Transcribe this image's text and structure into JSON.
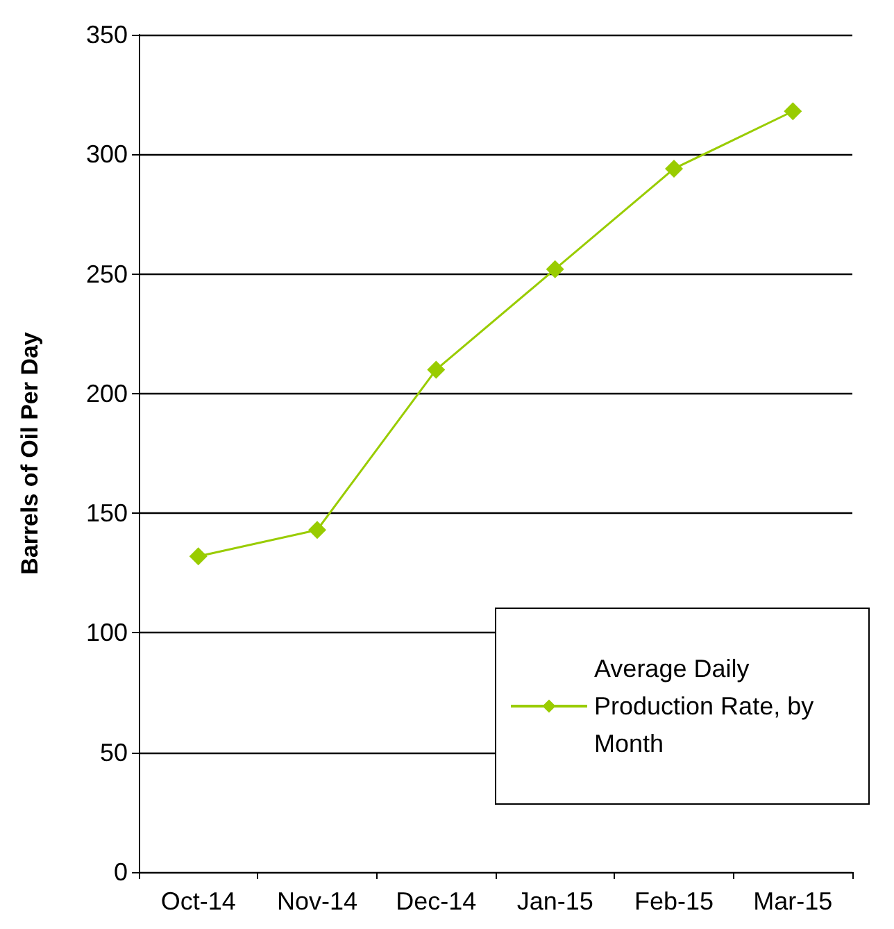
{
  "chart_data": {
    "type": "line",
    "ylabel": "Barrels of Oil Per Day",
    "categories": [
      "Oct-14",
      "Nov-14",
      "Dec-14",
      "Jan-15",
      "Feb-15",
      "Mar-15"
    ],
    "series": [
      {
        "name": "Average Daily Production Rate, by Month",
        "color": "#99cc00",
        "values": [
          132,
          143,
          210,
          252,
          294,
          318
        ]
      }
    ],
    "ylim": [
      0,
      350
    ],
    "yticks": [
      0,
      50,
      100,
      150,
      200,
      250,
      300,
      350
    ],
    "grid": "y",
    "legend": "bottom right",
    "marker": "diamond",
    "line_style": "solid"
  }
}
